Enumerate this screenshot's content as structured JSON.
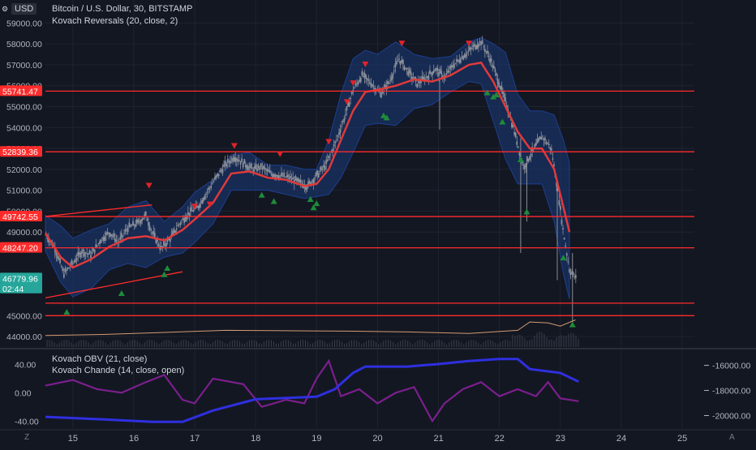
{
  "header": {
    "currency_label": "USD",
    "symbol_line": "Bitcoin / U.S. Dollar, 30, BITSTAMP",
    "indicator_line": "Kovach Reversals (20, close, 2)",
    "settings_icon": "gear-icon"
  },
  "lower_pane": {
    "indicator_1": "Kovach OBV (21, close)",
    "indicator_2": "Kovach Chande (14, close, open)"
  },
  "corners": {
    "bottom_left": "Z",
    "bottom_right": "A"
  },
  "colors": {
    "background": "#131722",
    "grid": "#1f2330",
    "axis_text": "#b2b5be",
    "candle": "#8a8f99",
    "band_fill": "#1a3a7a",
    "basis": "#e03a3a",
    "hline": "#ff2b2b",
    "sell_marker": "#e0242a",
    "buy_marker": "#1e8c3a",
    "volume_line": "#d39b72",
    "obv": "#2f2fe0",
    "chande": "#7b1f8c"
  },
  "chart_data": [
    {
      "type": "candlestick",
      "title": "Bitcoin / U.S. Dollar, 30, BITSTAMP",
      "subtitle": "Kovach Reversals (20, close, 2)",
      "x_ticks": [
        "15",
        "16",
        "17",
        "18",
        "19",
        "20",
        "21",
        "22",
        "23",
        "24",
        "25"
      ],
      "x_range": [
        14.55,
        25.2
      ],
      "y_ticks": [
        44000,
        45000,
        49000,
        50000,
        51000,
        52000,
        53000,
        54000,
        55000,
        56000,
        57000,
        58000,
        59000
      ],
      "y_range": [
        43500,
        60100
      ],
      "price_labels": [
        {
          "text": "55741.47",
          "value": 55741.47,
          "color": "#ff2b2b"
        },
        {
          "text": "52839.36",
          "value": 52839.36,
          "color": "#ff2b2b"
        },
        {
          "text": "49742.55",
          "value": 49742.55,
          "color": "#ff2b2b"
        },
        {
          "text": "46779.96",
          "value": 46779.96,
          "color": "#26a69a"
        },
        {
          "text": "02:44",
          "value": 46300,
          "color": "#26a69a"
        },
        {
          "text": "48247.20",
          "value": 48247.2,
          "color": "#ff2b2b"
        }
      ],
      "horizontal_levels": [
        55741.47,
        52839.36,
        49742.55,
        48247.2,
        45600,
        45000
      ],
      "basis": [
        [
          14.55,
          48950
        ],
        [
          14.8,
          47800
        ],
        [
          15.0,
          47300
        ],
        [
          15.3,
          47700
        ],
        [
          15.6,
          48300
        ],
        [
          15.9,
          48700
        ],
        [
          16.2,
          48800
        ],
        [
          16.5,
          48600
        ],
        [
          16.8,
          49100
        ],
        [
          17.0,
          49600
        ],
        [
          17.3,
          50400
        ],
        [
          17.6,
          51800
        ],
        [
          17.9,
          51900
        ],
        [
          18.2,
          51600
        ],
        [
          18.5,
          51500
        ],
        [
          18.8,
          51200
        ],
        [
          19.0,
          51300
        ],
        [
          19.2,
          52000
        ],
        [
          19.4,
          53400
        ],
        [
          19.6,
          54800
        ],
        [
          19.8,
          55700
        ],
        [
          20.0,
          55800
        ],
        [
          20.3,
          56000
        ],
        [
          20.6,
          56300
        ],
        [
          20.9,
          56200
        ],
        [
          21.2,
          56500
        ],
        [
          21.5,
          57000
        ],
        [
          21.7,
          57100
        ],
        [
          21.9,
          56200
        ],
        [
          22.1,
          55000
        ],
        [
          22.3,
          53800
        ],
        [
          22.5,
          53000
        ],
        [
          22.7,
          53000
        ],
        [
          22.9,
          52000
        ],
        [
          23.05,
          50200
        ],
        [
          23.15,
          49000
        ]
      ],
      "band_upper": [
        [
          14.55,
          49800
        ],
        [
          14.8,
          49300
        ],
        [
          15.0,
          48700
        ],
        [
          15.3,
          49100
        ],
        [
          15.6,
          49400
        ],
        [
          15.9,
          50200
        ],
        [
          16.2,
          50500
        ],
        [
          16.5,
          49500
        ],
        [
          16.8,
          50200
        ],
        [
          17.0,
          50900
        ],
        [
          17.3,
          51500
        ],
        [
          17.6,
          52700
        ],
        [
          17.9,
          52800
        ],
        [
          18.2,
          52200
        ],
        [
          18.5,
          52200
        ],
        [
          18.8,
          52000
        ],
        [
          19.0,
          52000
        ],
        [
          19.2,
          53400
        ],
        [
          19.4,
          55600
        ],
        [
          19.6,
          57300
        ],
        [
          19.8,
          57700
        ],
        [
          20.0,
          57500
        ],
        [
          20.3,
          58100
        ],
        [
          20.6,
          57500
        ],
        [
          20.9,
          57300
        ],
        [
          21.2,
          57400
        ],
        [
          21.5,
          58100
        ],
        [
          21.7,
          58300
        ],
        [
          21.9,
          58000
        ],
        [
          22.1,
          57600
        ],
        [
          22.3,
          55600
        ],
        [
          22.5,
          54800
        ],
        [
          22.7,
          54800
        ],
        [
          22.9,
          54600
        ],
        [
          23.05,
          53400
        ],
        [
          23.15,
          52300
        ]
      ],
      "band_lower": [
        [
          14.55,
          48100
        ],
        [
          14.8,
          46600
        ],
        [
          15.0,
          45900
        ],
        [
          15.3,
          46300
        ],
        [
          15.6,
          47200
        ],
        [
          15.9,
          47500
        ],
        [
          16.2,
          47300
        ],
        [
          16.5,
          47800
        ],
        [
          16.8,
          48000
        ],
        [
          17.0,
          48500
        ],
        [
          17.3,
          49400
        ],
        [
          17.6,
          51000
        ],
        [
          17.9,
          51000
        ],
        [
          18.2,
          51000
        ],
        [
          18.5,
          50800
        ],
        [
          18.8,
          50600
        ],
        [
          19.0,
          50700
        ],
        [
          19.2,
          50800
        ],
        [
          19.4,
          51600
        ],
        [
          19.6,
          52800
        ],
        [
          19.8,
          54100
        ],
        [
          20.0,
          54200
        ],
        [
          20.3,
          54100
        ],
        [
          20.6,
          54900
        ],
        [
          20.9,
          55100
        ],
        [
          21.2,
          55700
        ],
        [
          21.5,
          56200
        ],
        [
          21.7,
          56100
        ],
        [
          21.9,
          54300
        ],
        [
          22.1,
          52500
        ],
        [
          22.3,
          51300
        ],
        [
          22.5,
          51300
        ],
        [
          22.7,
          51300
        ],
        [
          22.9,
          49500
        ],
        [
          23.05,
          47000
        ],
        [
          23.15,
          45800
        ]
      ],
      "price_path": [
        [
          14.55,
          48900
        ],
        [
          14.7,
          48300
        ],
        [
          14.85,
          47000
        ],
        [
          15.0,
          47500
        ],
        [
          15.15,
          48100
        ],
        [
          15.3,
          47900
        ],
        [
          15.45,
          48600
        ],
        [
          15.6,
          49000
        ],
        [
          15.75,
          48500
        ],
        [
          15.9,
          49200
        ],
        [
          16.05,
          49400
        ],
        [
          16.2,
          49800
        ],
        [
          16.3,
          49000
        ],
        [
          16.45,
          48200
        ],
        [
          16.6,
          48700
        ],
        [
          16.75,
          49400
        ],
        [
          16.9,
          49900
        ],
        [
          17.05,
          50200
        ],
        [
          17.2,
          50900
        ],
        [
          17.35,
          51600
        ],
        [
          17.5,
          52200
        ],
        [
          17.65,
          52600
        ],
        [
          17.8,
          52300
        ],
        [
          17.95,
          52000
        ],
        [
          18.1,
          52100
        ],
        [
          18.25,
          51800
        ],
        [
          18.4,
          51700
        ],
        [
          18.55,
          51600
        ],
        [
          18.7,
          51400
        ],
        [
          18.85,
          51200
        ],
        [
          19.0,
          51700
        ],
        [
          19.15,
          52200
        ],
        [
          19.3,
          53200
        ],
        [
          19.45,
          54400
        ],
        [
          19.6,
          55800
        ],
        [
          19.75,
          56500
        ],
        [
          19.9,
          56100
        ],
        [
          20.05,
          55600
        ],
        [
          20.2,
          56200
        ],
        [
          20.35,
          57300
        ],
        [
          20.5,
          56700
        ],
        [
          20.65,
          56100
        ],
        [
          20.8,
          56400
        ],
        [
          20.95,
          56800
        ],
        [
          21.1,
          56400
        ],
        [
          21.25,
          57000
        ],
        [
          21.4,
          57400
        ],
        [
          21.55,
          57800
        ],
        [
          21.7,
          58100
        ],
        [
          21.85,
          57300
        ],
        [
          22.0,
          56100
        ],
        [
          22.15,
          54800
        ],
        [
          22.3,
          53200
        ],
        [
          22.4,
          52100
        ],
        [
          22.55,
          52900
        ],
        [
          22.7,
          53600
        ],
        [
          22.85,
          53000
        ],
        [
          22.95,
          51200
        ],
        [
          23.05,
          49000
        ],
        [
          23.15,
          47200
        ],
        [
          23.25,
          46800
        ]
      ],
      "sell_markers": [
        [
          16.25,
          51200
        ],
        [
          17.0,
          50200
        ],
        [
          17.25,
          50300
        ],
        [
          17.65,
          53100
        ],
        [
          18.4,
          52700
        ],
        [
          19.2,
          53300
        ],
        [
          19.5,
          55200
        ],
        [
          19.6,
          56100
        ],
        [
          19.8,
          57000
        ],
        [
          20.4,
          58000
        ],
        [
          21.5,
          58000
        ]
      ],
      "buy_markers": [
        [
          14.9,
          45200
        ],
        [
          15.8,
          46100
        ],
        [
          16.5,
          47000
        ],
        [
          16.55,
          47300
        ],
        [
          18.1,
          50800
        ],
        [
          18.3,
          50500
        ],
        [
          18.9,
          50600
        ],
        [
          18.95,
          50200
        ],
        [
          19.0,
          50400
        ],
        [
          20.1,
          54600
        ],
        [
          20.15,
          54500
        ],
        [
          21.8,
          55700
        ],
        [
          21.9,
          55500
        ],
        [
          21.95,
          55600
        ],
        [
          22.05,
          54300
        ],
        [
          22.35,
          52500
        ],
        [
          22.45,
          50000
        ],
        [
          23.05,
          47800
        ],
        [
          23.2,
          44600
        ]
      ],
      "trendline_upper": [
        [
          14.55,
          49750
        ],
        [
          16.3,
          50300
        ]
      ],
      "trendline_lower": [
        [
          14.55,
          45850
        ],
        [
          16.8,
          47100
        ]
      ],
      "volume_line": [
        [
          14.55,
          44050
        ],
        [
          15.5,
          44100
        ],
        [
          16.5,
          44200
        ],
        [
          17.5,
          44300
        ],
        [
          18.5,
          44280
        ],
        [
          19.5,
          44260
        ],
        [
          20.5,
          44220
        ],
        [
          21.5,
          44150
        ],
        [
          22.3,
          44300
        ],
        [
          22.5,
          44700
        ],
        [
          22.8,
          44650
        ],
        [
          23.0,
          44500
        ],
        [
          23.25,
          44800
        ]
      ]
    },
    {
      "type": "line",
      "title": "Kovach OBV (21, close)",
      "x_ticks": [
        "15",
        "16",
        "17",
        "18",
        "19",
        "20",
        "21",
        "22",
        "23",
        "24",
        "25"
      ],
      "left_y_ticks": [
        40.0,
        0.0,
        -40.0
      ],
      "left_y_labels": [
        "40.00",
        "0.00",
        "-40.00"
      ],
      "left_y_range": [
        -50,
        60
      ],
      "right_y_ticks": [
        -16000,
        -18000,
        -20000
      ],
      "right_y_labels": [
        "-16000.00",
        "-18000.00",
        "-20000.00"
      ],
      "right_y_range": [
        -21000,
        -14800
      ],
      "series": [
        {
          "name": "Kovach OBV (21, close)",
          "axis": "right",
          "points": [
            [
              14.55,
              -20100
            ],
            [
              15.5,
              -20300
            ],
            [
              16.3,
              -20500
            ],
            [
              16.8,
              -20500
            ],
            [
              17.3,
              -19600
            ],
            [
              18.0,
              -18700
            ],
            [
              19.0,
              -18500
            ],
            [
              19.3,
              -17900
            ],
            [
              19.6,
              -16600
            ],
            [
              19.8,
              -16100
            ],
            [
              20.5,
              -16100
            ],
            [
              21.0,
              -15900
            ],
            [
              21.5,
              -15650
            ],
            [
              22.0,
              -15500
            ],
            [
              22.3,
              -15500
            ],
            [
              22.5,
              -16300
            ],
            [
              23.0,
              -16600
            ],
            [
              23.3,
              -17300
            ]
          ]
        },
        {
          "name": "Kovach Chande (14, close, open)",
          "axis": "left",
          "points": [
            [
              14.55,
              10
            ],
            [
              15.0,
              18
            ],
            [
              15.4,
              5
            ],
            [
              15.8,
              0
            ],
            [
              16.2,
              15
            ],
            [
              16.5,
              25
            ],
            [
              16.8,
              -10
            ],
            [
              17.0,
              -15
            ],
            [
              17.3,
              20
            ],
            [
              17.8,
              12
            ],
            [
              18.1,
              -20
            ],
            [
              18.5,
              -10
            ],
            [
              18.8,
              -15
            ],
            [
              19.0,
              20
            ],
            [
              19.2,
              45
            ],
            [
              19.4,
              -5
            ],
            [
              19.7,
              5
            ],
            [
              20.0,
              -15
            ],
            [
              20.3,
              0
            ],
            [
              20.6,
              8
            ],
            [
              20.9,
              -40
            ],
            [
              21.1,
              -15
            ],
            [
              21.4,
              5
            ],
            [
              21.7,
              15
            ],
            [
              22.0,
              -5
            ],
            [
              22.3,
              5
            ],
            [
              22.6,
              -5
            ],
            [
              22.8,
              15
            ],
            [
              23.0,
              -8
            ],
            [
              23.3,
              -12
            ]
          ]
        }
      ]
    }
  ]
}
